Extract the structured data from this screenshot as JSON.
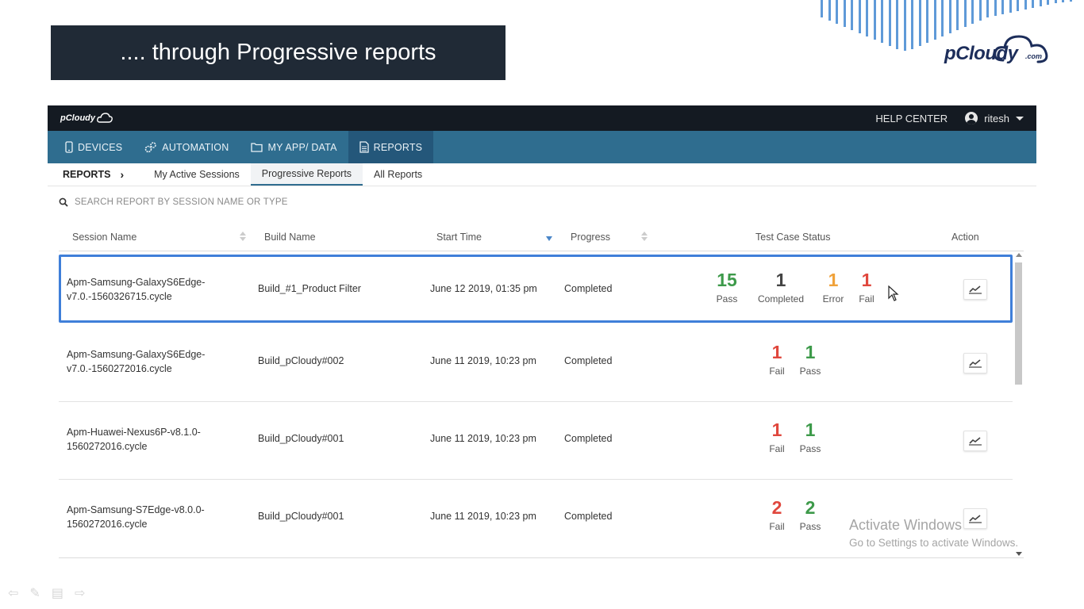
{
  "slide": {
    "title": ".... through Progressive reports",
    "brand_logo_text": "pCloudy",
    "brand_logo_suffix": ".com"
  },
  "app": {
    "logo_text": "pCloudy",
    "help_center": "HELP CENTER",
    "username": "ritesh",
    "nav": [
      {
        "label": "DEVICES",
        "icon": "mobile-device-icon"
      },
      {
        "label": "AUTOMATION",
        "icon": "gears-icon"
      },
      {
        "label": "MY APP/ DATA",
        "icon": "folder-icon"
      },
      {
        "label": "REPORTS",
        "icon": "document-icon",
        "active": true
      }
    ],
    "breadcrumb": "REPORTS",
    "tabs": [
      {
        "label": "My Active Sessions"
      },
      {
        "label": "Progressive Reports",
        "active": true
      },
      {
        "label": "All Reports"
      }
    ],
    "search_placeholder": "SEARCH REPORT BY SESSION NAME OR TYPE",
    "columns": {
      "session": "Session Name",
      "build": "Build Name",
      "start": "Start Time",
      "progress": "Progress",
      "status": "Test Case Status",
      "action": "Action"
    },
    "rows": [
      {
        "session_line1": "Apm-Samsung-GalaxyS6Edge-",
        "session_line2": "v7.0.-1560326715.cycle",
        "build": "Build_#1_Product Filter",
        "start": "June 12 2019, 01:35 pm",
        "progress": "Completed",
        "stats": [
          {
            "count": "15",
            "label": "Pass",
            "color": "#3d9a4a"
          },
          {
            "count": "1",
            "label": "Completed",
            "color": "#444444"
          },
          {
            "count": "1",
            "label": "Error",
            "color": "#f0a23a"
          },
          {
            "count": "1",
            "label": "Fail",
            "color": "#e0473d"
          }
        ]
      },
      {
        "session_line1": "Apm-Samsung-GalaxyS6Edge-",
        "session_line2": "v7.0.-1560272016.cycle",
        "build": "Build_pCloudy#002",
        "start": "June 11 2019, 10:23 pm",
        "progress": "Completed",
        "stats": [
          {
            "count": "1",
            "label": "Fail",
            "color": "#e0473d"
          },
          {
            "count": "1",
            "label": "Pass",
            "color": "#3d9a4a"
          }
        ]
      },
      {
        "session_line1": "Apm-Huawei-Nexus6P-v8.1.0-",
        "session_line2": "1560272016.cycle",
        "build": "Build_pCloudy#001",
        "start": "June 11 2019, 10:23 pm",
        "progress": "Completed",
        "stats": [
          {
            "count": "1",
            "label": "Fail",
            "color": "#e0473d"
          },
          {
            "count": "1",
            "label": "Pass",
            "color": "#3d9a4a"
          }
        ]
      },
      {
        "session_line1": "Apm-Samsung-S7Edge-v8.0.0-",
        "session_line2": "1560272016.cycle",
        "build": "Build_pCloudy#001",
        "start": "June 11 2019, 10:23 pm",
        "progress": "Completed",
        "stats": [
          {
            "count": "2",
            "label": "Fail",
            "color": "#e0473d"
          },
          {
            "count": "2",
            "label": "Pass",
            "color": "#3d9a4a"
          }
        ]
      }
    ]
  },
  "watermark": {
    "line1": "Activate Windows",
    "line2": "Go to Settings to activate Windows."
  }
}
